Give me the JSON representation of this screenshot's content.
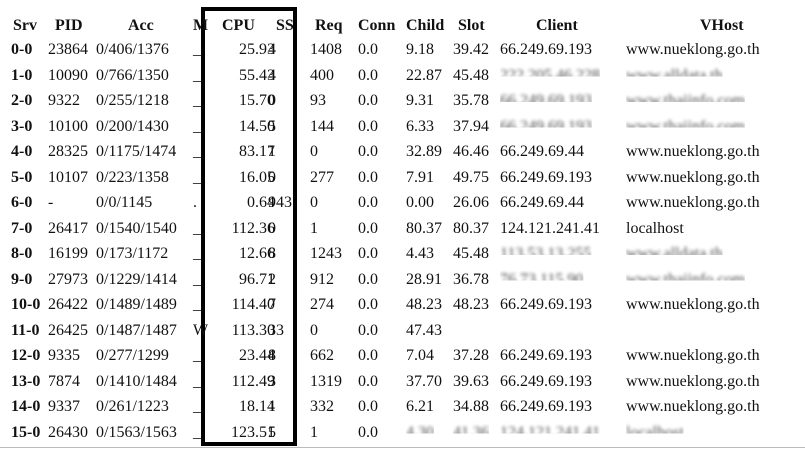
{
  "table": {
    "columns": [
      "Srv",
      "PID",
      "Acc",
      "M",
      "CPU",
      "SS",
      "Req",
      "Conn",
      "Child",
      "Slot",
      "Client",
      "VHost"
    ],
    "rows": [
      [
        "0-0",
        "23864",
        "0/406/1376",
        "_",
        "25.93",
        "4",
        "1408",
        "0.0",
        "9.18",
        "39.42",
        "66.249.69.193",
        "www.nueklong.go.th"
      ],
      [
        "1-0",
        "10090",
        "0/766/1350",
        "_",
        "55.43",
        "4",
        "400",
        "0.0",
        "22.87",
        "45.48",
        "222.205.46.228",
        "www.alldata.th"
      ],
      [
        "2-0",
        "9322",
        "0/255/1218",
        "_",
        "15.70",
        "0",
        "93",
        "0.0",
        "9.31",
        "35.78",
        "66.249.69.193",
        "www.thaiinfo.com"
      ],
      [
        "3-0",
        "10100",
        "0/200/1430",
        "_",
        "14.50",
        "5",
        "144",
        "0.0",
        "6.33",
        "37.94",
        "66.249.69.193",
        "www.thaiinfo.com"
      ],
      [
        "4-0",
        "28325",
        "0/1175/1474",
        "_",
        "83.17",
        "1",
        "0",
        "0.0",
        "32.89",
        "46.46",
        "66.249.69.44",
        "www.nueklong.go.th"
      ],
      [
        "5-0",
        "10107",
        "0/223/1358",
        "_",
        "16.05",
        "0",
        "277",
        "0.0",
        "7.91",
        "49.75",
        "66.249.69.193",
        "www.nueklong.go.th"
      ],
      [
        "6-0",
        "-",
        "0/0/1145",
        ".",
        "0.64",
        "943",
        "0",
        "0.0",
        "0.00",
        "26.06",
        "66.249.69.44",
        "www.nueklong.go.th"
      ],
      [
        "7-0",
        "26417",
        "0/1540/1540",
        "_",
        "112.36",
        "0",
        "1",
        "0.0",
        "80.37",
        "80.37",
        "124.121.241.41",
        "localhost"
      ],
      [
        "8-0",
        "16199",
        "0/173/1172",
        "_",
        "12.66",
        "8",
        "1243",
        "0.0",
        "4.43",
        "45.48",
        "113.53.13.255",
        "www.alldata.th"
      ],
      [
        "9-0",
        "27973",
        "0/1229/1414",
        "_",
        "96.71",
        "2",
        "912",
        "0.0",
        "28.91",
        "36.78",
        "76.73.115.90",
        "www.thaiinfo.com"
      ],
      [
        "10-0",
        "26422",
        "0/1489/1489",
        "_",
        "114.40",
        "7",
        "274",
        "0.0",
        "48.23",
        "48.23",
        "66.249.69.193",
        "www.nueklong.go.th"
      ],
      [
        "11-0",
        "26425",
        "0/1487/1487",
        "W",
        "113.30",
        "33",
        "0",
        "0.0",
        "47.43",
        "",
        "",
        ""
      ],
      [
        "12-0",
        "9335",
        "0/277/1299",
        "_",
        "23.44",
        "8",
        "662",
        "0.0",
        "7.04",
        "37.28",
        "66.249.69.193",
        "www.nueklong.go.th"
      ],
      [
        "13-0",
        "7874",
        "0/1410/1484",
        "_",
        "112.49",
        "3",
        "1319",
        "0.0",
        "37.70",
        "39.63",
        "66.249.69.193",
        "www.nueklong.go.th"
      ],
      [
        "14-0",
        "9337",
        "0/261/1223",
        "_",
        "18.14",
        "1",
        "332",
        "0.0",
        "6.21",
        "34.88",
        "66.249.69.193",
        "www.nueklong.go.th"
      ],
      [
        "15-0",
        "26430",
        "0/1563/1563",
        "_",
        "123.51",
        "5",
        "1",
        "0.0",
        "4.30",
        "41.36",
        "124.121.241.41",
        "localhost"
      ]
    ]
  }
}
